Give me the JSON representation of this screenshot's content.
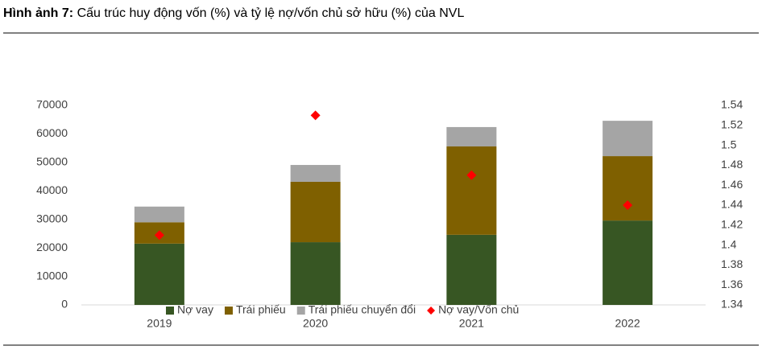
{
  "chart_data": {
    "type": "bar",
    "stacked": true,
    "title_label": "Hình ảnh 7:",
    "title": "Cấu trúc huy động vốn (%) và tỷ lệ nợ/vốn chủ sở hữu (%) của NVL",
    "categories": [
      "2019",
      "2020",
      "2021",
      "2022"
    ],
    "series": [
      {
        "name": "Nợ vay",
        "color": "#375623",
        "values": [
          21500,
          22000,
          24600,
          29600
        ]
      },
      {
        "name": "Trái phiếu",
        "color": "#7f6000",
        "values": [
          7500,
          21200,
          31000,
          22600
        ]
      },
      {
        "name": "Trái phiếu chuyển đổi",
        "color": "#a5a5a5",
        "values": [
          5500,
          5900,
          6800,
          12400
        ]
      },
      {
        "name": "Nợ vay/Vốn chủ",
        "color": "#ff0000",
        "type": "scatter",
        "axis": "y2",
        "values": [
          1.41,
          1.53,
          1.47,
          1.44
        ]
      }
    ],
    "ylim": [
      0,
      70000
    ],
    "yticks": [
      0,
      10000,
      20000,
      30000,
      40000,
      50000,
      60000,
      70000
    ],
    "y2lim": [
      1.34,
      1.54
    ],
    "y2ticks": [
      1.34,
      1.36,
      1.38,
      1.4,
      1.42,
      1.44,
      1.46,
      1.48,
      1.5,
      1.52,
      1.54
    ],
    "grid": false,
    "legend": "bottom"
  }
}
